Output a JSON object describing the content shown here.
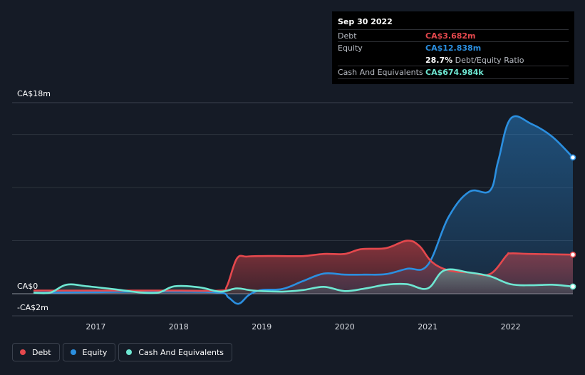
{
  "tooltip": {
    "date": "Sep 30 2022",
    "debt_label": "Debt",
    "debt_value": "CA$3.682m",
    "equity_label": "Equity",
    "equity_value": "CA$12.838m",
    "ratio_value": "28.7%",
    "ratio_label": "Debt/Equity Ratio",
    "cash_label": "Cash And Equivalents",
    "cash_value": "CA$674.984k"
  },
  "colors": {
    "debt": "#e5484d",
    "equity": "#2b8fe0",
    "cash": "#6ee7d2",
    "background": "#151b26"
  },
  "chart_data": {
    "type": "area",
    "title": "",
    "xlabel": "",
    "ylabel": "",
    "y_axis_labels": {
      "top": "CA$18m",
      "zero": "CA$0",
      "bottom": "-CA$2m"
    },
    "ylim": [
      -2,
      18
    ],
    "xlim": [
      2016.25,
      2022.75
    ],
    "x_ticks": [
      2017,
      2018,
      2019,
      2020,
      2021,
      2022
    ],
    "x_tick_labels": [
      "2017",
      "2018",
      "2019",
      "2020",
      "2021",
      "2022"
    ],
    "gridlines": [
      0,
      5,
      10,
      15
    ],
    "legend_position": "bottom-left",
    "series": [
      {
        "name": "Debt",
        "color": "#e5484d",
        "points": [
          [
            2016.25,
            0.3
          ],
          [
            2017.0,
            0.3
          ],
          [
            2017.5,
            0.3
          ],
          [
            2018.0,
            0.3
          ],
          [
            2018.5,
            0.3
          ],
          [
            2018.58,
            0.7
          ],
          [
            2018.7,
            3.3
          ],
          [
            2018.82,
            3.5
          ],
          [
            2019.0,
            3.55
          ],
          [
            2019.25,
            3.55
          ],
          [
            2019.5,
            3.55
          ],
          [
            2019.75,
            3.75
          ],
          [
            2020.0,
            3.75
          ],
          [
            2020.2,
            4.2
          ],
          [
            2020.5,
            4.3
          ],
          [
            2020.75,
            5.0
          ],
          [
            2020.9,
            4.5
          ],
          [
            2021.05,
            3.0
          ],
          [
            2021.25,
            2.2
          ],
          [
            2021.5,
            2.0
          ],
          [
            2021.75,
            1.85
          ],
          [
            2021.95,
            3.6
          ],
          [
            2022.0,
            3.8
          ],
          [
            2022.25,
            3.75
          ],
          [
            2022.75,
            3.68
          ]
        ]
      },
      {
        "name": "Equity",
        "color": "#2b8fe0",
        "points": [
          [
            2016.25,
            0.1
          ],
          [
            2017.0,
            0.15
          ],
          [
            2017.5,
            0.2
          ],
          [
            2018.0,
            0.2
          ],
          [
            2018.5,
            0.1
          ],
          [
            2018.6,
            -0.35
          ],
          [
            2018.72,
            -0.95
          ],
          [
            2018.85,
            -0.1
          ],
          [
            2019.0,
            0.35
          ],
          [
            2019.25,
            0.45
          ],
          [
            2019.5,
            1.2
          ],
          [
            2019.75,
            1.9
          ],
          [
            2020.0,
            1.8
          ],
          [
            2020.25,
            1.8
          ],
          [
            2020.5,
            1.85
          ],
          [
            2020.75,
            2.35
          ],
          [
            2021.0,
            2.7
          ],
          [
            2021.25,
            7.2
          ],
          [
            2021.5,
            9.6
          ],
          [
            2021.75,
            9.7
          ],
          [
            2021.85,
            12.5
          ],
          [
            2022.0,
            16.5
          ],
          [
            2022.25,
            16.0
          ],
          [
            2022.5,
            14.8
          ],
          [
            2022.75,
            12.838
          ]
        ]
      },
      {
        "name": "Cash And Equivalents",
        "color": "#6ee7d2",
        "points": [
          [
            2016.25,
            0.1
          ],
          [
            2016.45,
            0.1
          ],
          [
            2016.65,
            0.85
          ],
          [
            2016.9,
            0.7
          ],
          [
            2017.25,
            0.4
          ],
          [
            2017.5,
            0.15
          ],
          [
            2017.75,
            0.1
          ],
          [
            2017.95,
            0.7
          ],
          [
            2018.25,
            0.6
          ],
          [
            2018.5,
            0.2
          ],
          [
            2018.7,
            0.5
          ],
          [
            2018.9,
            0.3
          ],
          [
            2019.25,
            0.2
          ],
          [
            2019.5,
            0.35
          ],
          [
            2019.75,
            0.65
          ],
          [
            2020.0,
            0.25
          ],
          [
            2020.25,
            0.5
          ],
          [
            2020.5,
            0.85
          ],
          [
            2020.75,
            0.9
          ],
          [
            2021.0,
            0.5
          ],
          [
            2021.2,
            2.2
          ],
          [
            2021.5,
            2.0
          ],
          [
            2021.75,
            1.65
          ],
          [
            2022.0,
            0.9
          ],
          [
            2022.25,
            0.8
          ],
          [
            2022.5,
            0.85
          ],
          [
            2022.75,
            0.675
          ]
        ]
      }
    ]
  },
  "legend": {
    "items": [
      "Debt",
      "Equity",
      "Cash And Equivalents"
    ]
  }
}
